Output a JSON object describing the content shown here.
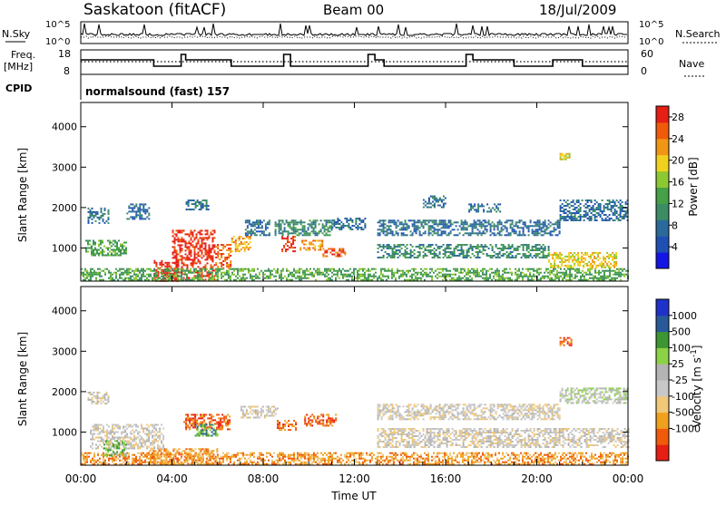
{
  "header": {
    "station": "Saskatoon (fitACF)",
    "beam": "Beam 00",
    "date": "18/Jul/2009"
  },
  "sky_panel": {
    "left_label": "N.Sky",
    "right_label": "N.Search",
    "left_ticks": [
      "10^5",
      "10^0"
    ],
    "right_ticks": [
      "10^5",
      "10^0"
    ]
  },
  "freq_panel": {
    "left_label_line1": "Freq.",
    "left_label_line2": "[MHz]",
    "right_label": "Nave",
    "left_ticks": [
      "18",
      "8"
    ],
    "right_ticks": [
      "60",
      "0"
    ]
  },
  "cpid_panel": {
    "label": "CPID",
    "value": "normalsound (fast) 157"
  },
  "colors": {
    "power": [
      "#1414e6",
      "#1e50b4",
      "#2a6a9a",
      "#3c8c64",
      "#46a046",
      "#8cc832",
      "#f0d21e",
      "#f09614",
      "#f05a0a",
      "#e61e14"
    ],
    "velocity": [
      "#e61e14",
      "#f05a0a",
      "#f0a01e",
      "#f0c878",
      "#c8c8c8",
      "#b4b4b4",
      "#8cd246",
      "#3c9632",
      "#285a9a",
      "#1e32c8"
    ]
  },
  "chart_data": [
    {
      "type": "heatmap",
      "name": "power",
      "ylabel": "Slant Range [km]",
      "xlabel": "",
      "ylim": [
        180,
        4600
      ],
      "yticks": [
        "1000",
        "2000",
        "3000",
        "4000"
      ],
      "yticks_values": [
        1000,
        2000,
        3000,
        4000
      ],
      "xlim": [
        0,
        24
      ],
      "colorbar": {
        "label": "Power [dB]",
        "ticks": [
          "4",
          "8",
          "12",
          "16",
          "20",
          "24",
          "28"
        ],
        "range": [
          0,
          30
        ]
      },
      "regions": [
        {
          "t0": 4.0,
          "t1": 5.9,
          "r0": 200,
          "r1": 1450,
          "level": 9
        },
        {
          "t0": 3.2,
          "t1": 4.3,
          "r0": 200,
          "r1": 700,
          "level": 9
        },
        {
          "t0": 5.9,
          "t1": 6.6,
          "r0": 500,
          "r1": 1100,
          "level": 8
        },
        {
          "t0": 6.6,
          "t1": 7.4,
          "r0": 900,
          "r1": 1300,
          "level": 7
        },
        {
          "t0": 8.8,
          "t1": 9.4,
          "r0": 900,
          "r1": 1300,
          "level": 9
        },
        {
          "t0": 9.6,
          "t1": 10.6,
          "r0": 950,
          "r1": 1200,
          "level": 7
        },
        {
          "t0": 10.6,
          "t1": 11.6,
          "r0": 800,
          "r1": 1000,
          "level": 8
        },
        {
          "t0": 0.2,
          "t1": 2.0,
          "r0": 800,
          "r1": 1200,
          "level": 4
        },
        {
          "t0": 0.3,
          "t1": 1.2,
          "r0": 1600,
          "r1": 2000,
          "level": 2
        },
        {
          "t0": 2.0,
          "t1": 3.0,
          "r0": 1700,
          "r1": 2100,
          "level": 2
        },
        {
          "t0": 4.6,
          "t1": 5.6,
          "r0": 1950,
          "r1": 2200,
          "level": 2
        },
        {
          "t0": 7.2,
          "t1": 8.3,
          "r0": 1300,
          "r1": 1700,
          "level": 2
        },
        {
          "t0": 8.5,
          "t1": 11.0,
          "r0": 1300,
          "r1": 1700,
          "level": 3
        },
        {
          "t0": 11.0,
          "t1": 12.5,
          "r0": 1450,
          "r1": 1750,
          "level": 2
        },
        {
          "t0": 13.0,
          "t1": 21.0,
          "r0": 1300,
          "r1": 1700,
          "level": 2
        },
        {
          "t0": 13.0,
          "t1": 20.5,
          "r0": 750,
          "r1": 1100,
          "level": 3
        },
        {
          "t0": 20.5,
          "t1": 23.5,
          "r0": 500,
          "r1": 900,
          "level": 6
        },
        {
          "t0": 21.0,
          "t1": 24.0,
          "r0": 1700,
          "r1": 2200,
          "level": 2
        },
        {
          "t0": 17.0,
          "t1": 18.4,
          "r0": 1900,
          "r1": 2100,
          "level": 2
        },
        {
          "t0": 15.0,
          "t1": 16.0,
          "r0": 2000,
          "r1": 2300,
          "level": 2
        },
        {
          "t0": 0.0,
          "t1": 24.0,
          "r0": 200,
          "r1": 500,
          "level": 4
        },
        {
          "t0": 21.0,
          "t1": 21.4,
          "r0": 3200,
          "r1": 3350,
          "level": 6
        }
      ]
    },
    {
      "type": "heatmap",
      "name": "velocity",
      "ylabel": "Slant Range [km]",
      "xlabel": "Time UT",
      "ylim": [
        180,
        4600
      ],
      "yticks": [
        "1000",
        "2000",
        "3000",
        "4000"
      ],
      "yticks_values": [
        1000,
        2000,
        3000,
        4000
      ],
      "xlim": [
        0,
        24
      ],
      "xticks": [
        "00:00",
        "04:00",
        "08:00",
        "12:00",
        "16:00",
        "20:00",
        "00:00"
      ],
      "xticks_values": [
        0,
        4,
        8,
        12,
        16,
        20,
        24
      ],
      "colorbar": {
        "label": "Velocity [m s^-1]",
        "ticks": [
          "1000",
          "500",
          "100",
          "25",
          "-25",
          "-100",
          "-500",
          "-1000"
        ]
      },
      "regions": [
        {
          "t0": 0.0,
          "t1": 24.0,
          "r0": 200,
          "r1": 500,
          "level": 2
        },
        {
          "t0": 3.0,
          "t1": 6.0,
          "r0": 200,
          "r1": 600,
          "level": 2
        },
        {
          "t0": 4.5,
          "t1": 6.5,
          "r0": 1050,
          "r1": 1450,
          "level": 1
        },
        {
          "t0": 8.6,
          "t1": 9.4,
          "r0": 1050,
          "r1": 1300,
          "level": 1
        },
        {
          "t0": 9.8,
          "t1": 11.2,
          "r0": 1150,
          "r1": 1450,
          "level": 1
        },
        {
          "t0": 0.4,
          "t1": 3.6,
          "r0": 600,
          "r1": 1200,
          "level": 4
        },
        {
          "t0": 0.3,
          "t1": 1.2,
          "r0": 1700,
          "r1": 2000,
          "level": 4
        },
        {
          "t0": 13.0,
          "t1": 24.0,
          "r0": 650,
          "r1": 1100,
          "level": 4
        },
        {
          "t0": 13.0,
          "t1": 21.0,
          "r0": 1300,
          "r1": 1700,
          "level": 4
        },
        {
          "t0": 21.0,
          "t1": 24.0,
          "r0": 1700,
          "r1": 2100,
          "level": 5
        },
        {
          "t0": 7.0,
          "t1": 8.6,
          "r0": 1350,
          "r1": 1650,
          "level": 4
        },
        {
          "t0": 21.0,
          "t1": 21.5,
          "r0": 3150,
          "r1": 3350,
          "level": 1
        },
        {
          "t0": 1.0,
          "t1": 2.0,
          "r0": 400,
          "r1": 800,
          "level": 6
        },
        {
          "t0": 5.0,
          "t1": 6.0,
          "r0": 900,
          "r1": 1200,
          "level": 7
        }
      ]
    }
  ]
}
